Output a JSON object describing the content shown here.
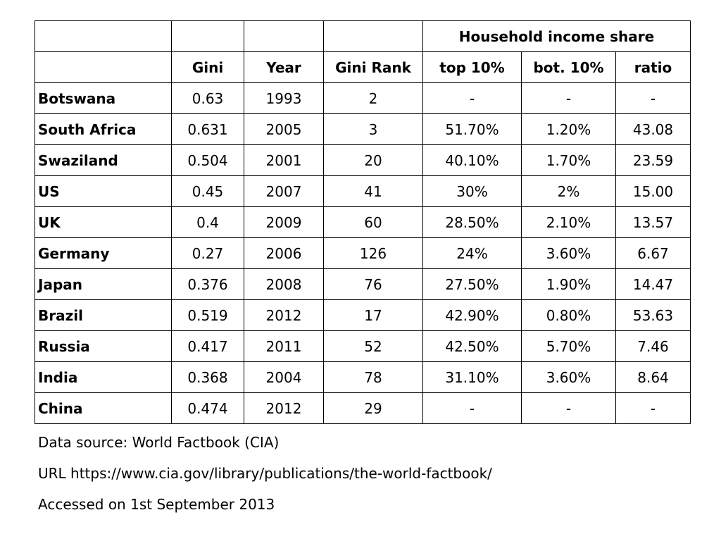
{
  "table": {
    "group_header": "Household income share",
    "columns": [
      "Gini",
      "Year",
      "Gini Rank",
      "top 10%",
      "bot. 10%",
      "ratio"
    ],
    "rows": [
      {
        "country": "Botswana",
        "gini": "0.63",
        "year": "1993",
        "rank": "2",
        "top": "-",
        "bottom": "-",
        "ratio": "-"
      },
      {
        "country": "South Africa",
        "gini": "0.631",
        "year": "2005",
        "rank": "3",
        "top": "51.70%",
        "bottom": "1.20%",
        "ratio": "43.08"
      },
      {
        "country": "Swaziland",
        "gini": "0.504",
        "year": "2001",
        "rank": "20",
        "top": "40.10%",
        "bottom": "1.70%",
        "ratio": "23.59"
      },
      {
        "country": "US",
        "gini": "0.45",
        "year": "2007",
        "rank": "41",
        "top": "30%",
        "bottom": "2%",
        "ratio": "15.00"
      },
      {
        "country": "UK",
        "gini": "0.4",
        "year": "2009",
        "rank": "60",
        "top": "28.50%",
        "bottom": "2.10%",
        "ratio": "13.57"
      },
      {
        "country": "Germany",
        "gini": "0.27",
        "year": "2006",
        "rank": "126",
        "top": "24%",
        "bottom": "3.60%",
        "ratio": "6.67"
      },
      {
        "country": "Japan",
        "gini": "0.376",
        "year": "2008",
        "rank": "76",
        "top": "27.50%",
        "bottom": "1.90%",
        "ratio": "14.47"
      },
      {
        "country": "Brazil",
        "gini": "0.519",
        "year": "2012",
        "rank": "17",
        "top": "42.90%",
        "bottom": "0.80%",
        "ratio": "53.63"
      },
      {
        "country": "Russia",
        "gini": "0.417",
        "year": "2011",
        "rank": "52",
        "top": "42.50%",
        "bottom": "5.70%",
        "ratio": "7.46"
      },
      {
        "country": "India",
        "gini": "0.368",
        "year": "2004",
        "rank": "78",
        "top": "31.10%",
        "bottom": "3.60%",
        "ratio": "8.64"
      },
      {
        "country": "China",
        "gini": "0.474",
        "year": "2012",
        "rank": "29",
        "top": "-",
        "bottom": "-",
        "ratio": "-"
      }
    ]
  },
  "notes": {
    "source": "Data source: World Factbook (CIA)",
    "url": "URL https://www.cia.gov/library/publications/the-world-factbook/",
    "accessed": "Accessed on 1st September 2013"
  }
}
